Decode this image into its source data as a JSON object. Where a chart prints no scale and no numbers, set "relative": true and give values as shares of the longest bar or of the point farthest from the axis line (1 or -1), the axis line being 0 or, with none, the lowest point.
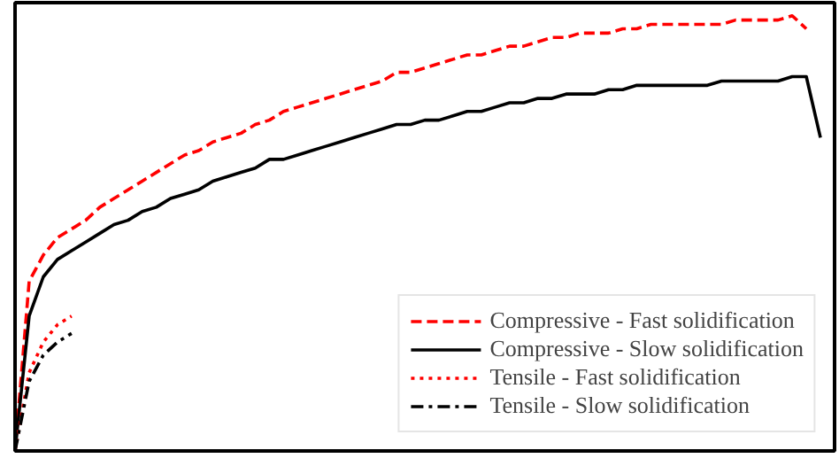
{
  "chart_data": {
    "type": "line",
    "relative": true,
    "legend": "bottom right",
    "categories": [
      null,
      null,
      null,
      null,
      null,
      null,
      null,
      null,
      null,
      null,
      null,
      null,
      null,
      null,
      null,
      null,
      null,
      null,
      null,
      null,
      null,
      null,
      null,
      null,
      null,
      null,
      null,
      null,
      null,
      null,
      null,
      null,
      null,
      null,
      null,
      null,
      null,
      null,
      null,
      null,
      null,
      null,
      null,
      null,
      null,
      null,
      null,
      null,
      null,
      null,
      null,
      null,
      null,
      null,
      null,
      null,
      null,
      null,
      null
    ],
    "series": [
      {
        "name": "Compressive - Fast solidification",
        "color": "#ff0000",
        "line_style": "dashed",
        "values": [
          0,
          0.39,
          0.45,
          0.49,
          0.51,
          0.53,
          0.56,
          0.58,
          0.6,
          0.62,
          0.64,
          0.66,
          0.68,
          0.69,
          0.71,
          0.72,
          0.73,
          0.75,
          0.76,
          0.78,
          0.79,
          0.8,
          0.81,
          0.82,
          0.83,
          0.84,
          0.85,
          0.87,
          0.87,
          0.88,
          0.89,
          0.9,
          0.91,
          0.91,
          0.92,
          0.93,
          0.93,
          0.94,
          0.95,
          0.95,
          0.96,
          0.96,
          0.96,
          0.97,
          0.97,
          0.98,
          0.98,
          0.98,
          0.98,
          0.98,
          0.98,
          0.99,
          0.99,
          0.99,
          0.99,
          1.0,
          0.97,
          null,
          null
        ]
      },
      {
        "name": "Compressive - Slow solidification",
        "color": "#000000",
        "line_style": "solid",
        "values": [
          0,
          0.31,
          0.4,
          0.44,
          0.46,
          0.48,
          0.5,
          0.52,
          0.53,
          0.55,
          0.56,
          0.58,
          0.59,
          0.6,
          0.62,
          0.63,
          0.64,
          0.65,
          0.67,
          0.67,
          0.68,
          0.69,
          0.7,
          0.71,
          0.72,
          0.73,
          0.74,
          0.75,
          0.75,
          0.76,
          0.76,
          0.77,
          0.78,
          0.78,
          0.79,
          0.8,
          0.8,
          0.81,
          0.81,
          0.82,
          0.82,
          0.82,
          0.83,
          0.83,
          0.84,
          0.84,
          0.84,
          0.84,
          0.84,
          0.84,
          0.85,
          0.85,
          0.85,
          0.85,
          0.85,
          0.86,
          0.86,
          0.72,
          null
        ]
      },
      {
        "name": "Tensile - Fast solidification",
        "color": "#ff0000",
        "line_style": "dotted",
        "values": [
          0,
          0.18,
          0.25,
          0.29,
          0.31,
          null,
          null,
          null,
          null,
          null,
          null,
          null,
          null,
          null,
          null,
          null,
          null,
          null,
          null,
          null,
          null,
          null,
          null,
          null,
          null,
          null,
          null,
          null,
          null,
          null,
          null,
          null,
          null,
          null,
          null,
          null,
          null,
          null,
          null,
          null,
          null,
          null,
          null,
          null,
          null,
          null,
          null,
          null,
          null,
          null,
          null,
          null,
          null,
          null,
          null,
          null,
          null,
          null,
          null
        ]
      },
      {
        "name": "Tensile - Slow solidification",
        "color": "#000000",
        "line_style": "dashdot",
        "values": [
          0,
          0.16,
          0.22,
          0.25,
          0.27,
          null,
          null,
          null,
          null,
          null,
          null,
          null,
          null,
          null,
          null,
          null,
          null,
          null,
          null,
          null,
          null,
          null,
          null,
          null,
          null,
          null,
          null,
          null,
          null,
          null,
          null,
          null,
          null,
          null,
          null,
          null,
          null,
          null,
          null,
          null,
          null,
          null,
          null,
          null,
          null,
          null,
          null,
          null,
          null,
          null,
          null,
          null,
          null,
          null,
          null,
          null,
          null,
          null,
          null
        ]
      }
    ]
  }
}
